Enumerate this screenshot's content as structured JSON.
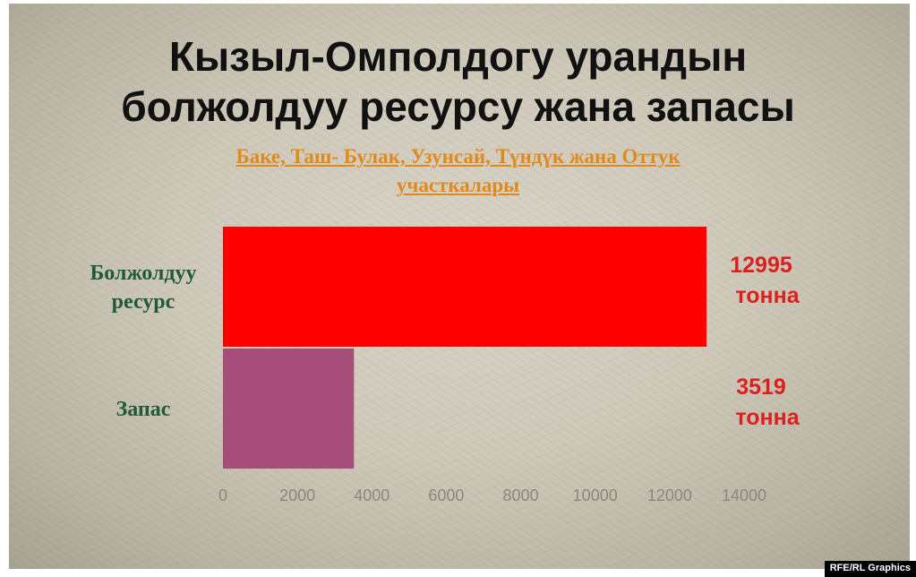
{
  "title_lines": [
    "Кызыл-Омполдогу урандын",
    "болжолдуу ресурсу жана запасы"
  ],
  "subtitle_lines": [
    "Баке, Таш- Булак, Узунсай, Түндүк жана Оттук",
    "участкалары"
  ],
  "credit": "RFE/RL Graphics",
  "colors": {
    "resource_bar": "#ff0000",
    "reserve_bar": "#a64d79",
    "category_text": "#1f5a3a",
    "value_text": "#dd1f1f",
    "subtitle_text": "#e08a1e"
  },
  "chart_data": {
    "type": "bar",
    "orientation": "horizontal",
    "title": "Кызыл-Омполдогу урандын болжолдуу ресурсу жана запасы",
    "subtitle": "Баке, Таш- Булак, Узунсай, Түндүк жана Оттук участкалары",
    "categories": [
      {
        "label_lines": [
          "Болжолдуу",
          "ресурс"
        ],
        "value": 12995,
        "value_text": "12995",
        "unit": "тонна",
        "color": "#ff0000"
      },
      {
        "label_lines": [
          "Запас"
        ],
        "value": 3519,
        "value_text": "3519",
        "unit": "тонна",
        "color": "#a64d79"
      }
    ],
    "xlim": [
      0,
      14000
    ],
    "x_ticks": [
      "0",
      "2000",
      "4000",
      "6000",
      "8000",
      "10000",
      "12000",
      "14000"
    ],
    "grid": false,
    "legend": "none"
  }
}
